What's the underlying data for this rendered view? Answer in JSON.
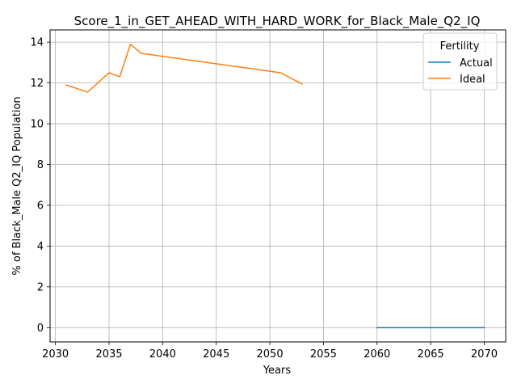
{
  "chart_data": {
    "type": "line",
    "title": "Score_1_in_GET_AHEAD_WITH_HARD_WORK_for_Black_Male_Q2_IQ",
    "xlabel": "Years",
    "ylabel": "% of Black_Male Q2_IQ Population",
    "xlim": [
      2029.5,
      2072.0
    ],
    "ylim": [
      -0.7,
      14.6
    ],
    "xticks": [
      2030,
      2035,
      2040,
      2045,
      2050,
      2055,
      2060,
      2065,
      2070
    ],
    "yticks": [
      0,
      2,
      4,
      6,
      8,
      10,
      12,
      14
    ],
    "grid": true,
    "legend": {
      "title": "Fertility",
      "placement": "top-right"
    },
    "series": [
      {
        "name": "Actual",
        "color": "#1f77b4",
        "x": [
          2060,
          2061,
          2062,
          2063,
          2064,
          2065,
          2066,
          2067,
          2068,
          2069,
          2070
        ],
        "y": [
          0,
          0,
          0,
          0,
          0,
          0,
          0,
          0,
          0,
          0,
          0
        ]
      },
      {
        "name": "Ideal",
        "color": "#ff7f0e",
        "x": [
          2031,
          2033,
          2035,
          2036,
          2037,
          2038,
          2051,
          2053
        ],
        "y": [
          11.9,
          11.55,
          12.5,
          12.3,
          13.9,
          13.45,
          12.5,
          11.95
        ]
      }
    ]
  }
}
